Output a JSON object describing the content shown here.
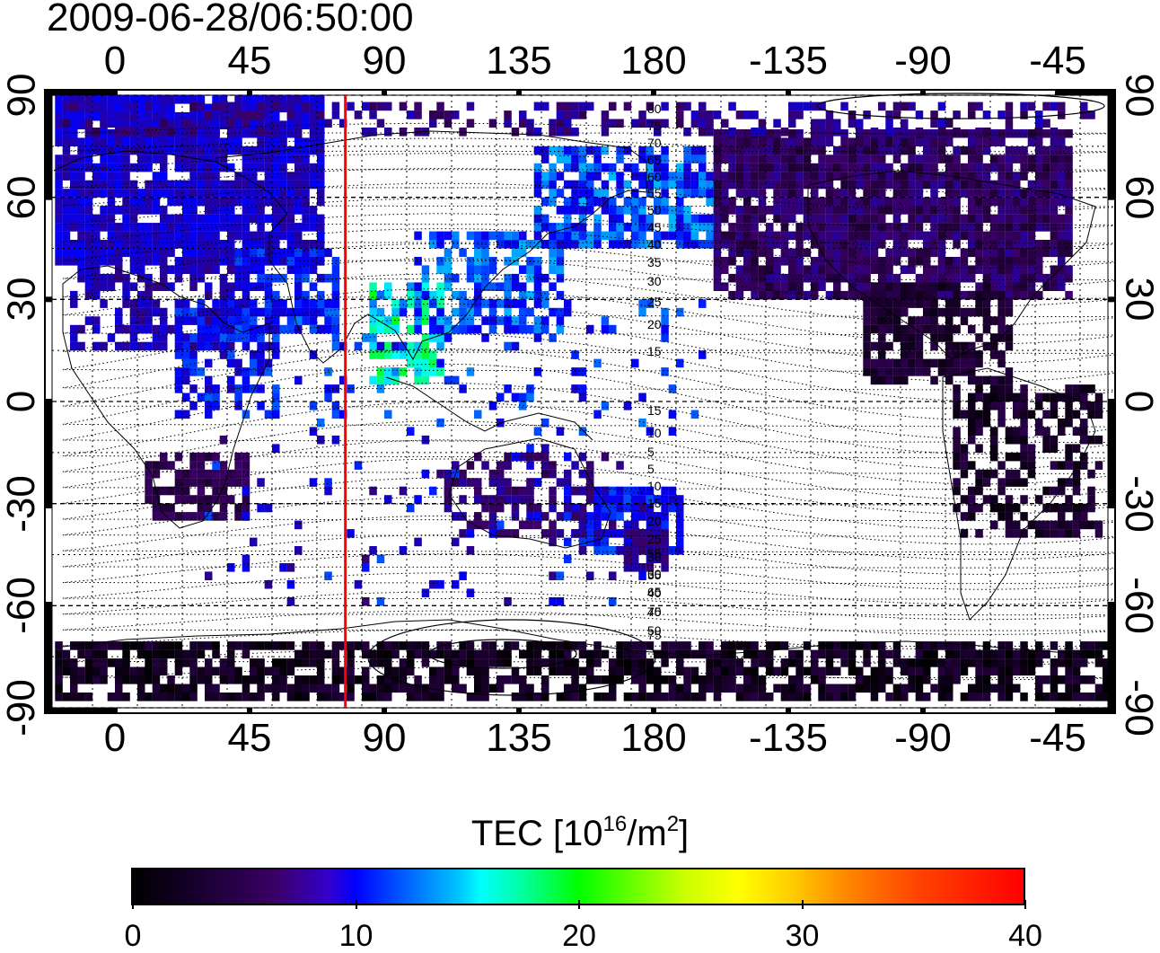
{
  "timestamp": "2009-06-28/06:50:00",
  "map": {
    "type": "world TEC map",
    "longitude_ticks": [
      "0",
      "45",
      "90",
      "135",
      "180",
      "-135",
      "-90",
      "-45"
    ],
    "latitude_ticks": [
      "90",
      "60",
      "30",
      "0",
      "-30",
      "-60",
      "-90"
    ],
    "contour_labels": [
      "80",
      "75",
      "70",
      "65",
      "60",
      "55",
      "50",
      "45",
      "40",
      "35",
      "30",
      "25",
      "20",
      "15",
      "15",
      "10",
      "5",
      "5",
      "10",
      "15",
      "20",
      "25",
      "30",
      "35",
      "40",
      "45",
      "50",
      "55",
      "60",
      "65",
      "70",
      "75"
    ],
    "marker_longitude_deg": 77,
    "colors": {
      "marker_line": "#ff0000",
      "grid": "#000000"
    }
  },
  "colorbar": {
    "title_prefix": "TEC  [10",
    "title_exp1": "16",
    "title_mid": "/m",
    "title_exp2": "2",
    "title_suffix": "]",
    "labels": [
      "0",
      "10",
      "20",
      "30",
      "40"
    ],
    "range": [
      0,
      40
    ]
  }
}
